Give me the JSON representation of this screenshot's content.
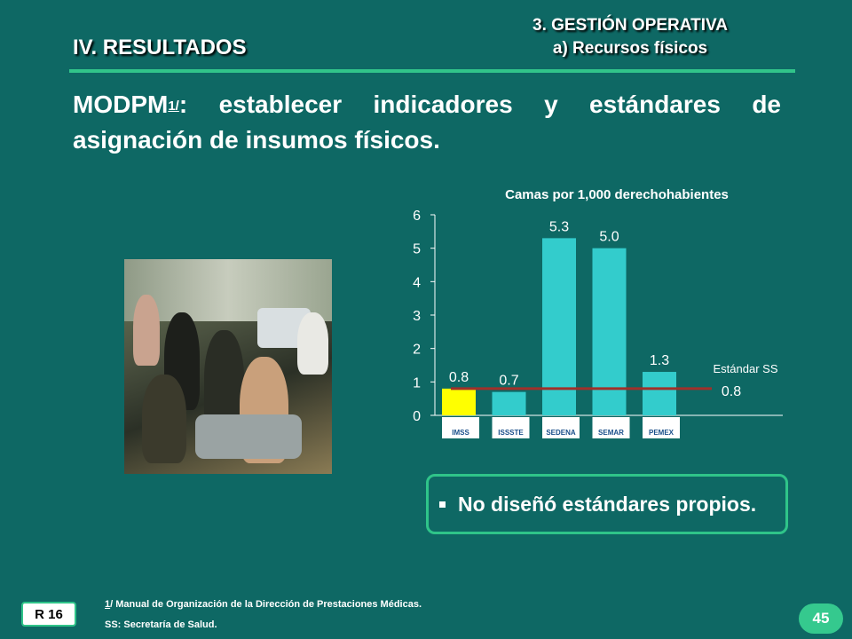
{
  "header": {
    "section": "IV. RESULTADOS",
    "topic": "3. GESTIÓN OPERATIVA",
    "subtopic": "a) Recursos físicos"
  },
  "title": {
    "prefix": "MODPM",
    "footnote_ref": "1/",
    "text": ": establecer indicadores y estándares de asignación de insumos físicos."
  },
  "chart_data": {
    "type": "bar",
    "title": "Camas por 1,000 derechohabientes",
    "categories": [
      "IMSS",
      "ISSSTE",
      "SEDENA",
      "SEMAR",
      "PEMEX"
    ],
    "values": [
      0.8,
      0.7,
      5.3,
      5.0,
      1.3
    ],
    "value_labels": [
      "0.8",
      "0.7",
      "5.3",
      "5.0",
      "1.3"
    ],
    "bar_colors": [
      "#ffff00",
      "#33cccc",
      "#33cccc",
      "#33cccc",
      "#33cccc"
    ],
    "ylim": [
      0,
      6
    ],
    "yticks": [
      "0",
      "1",
      "2",
      "3",
      "4",
      "5",
      "6"
    ],
    "reference_line": {
      "label": "Estándar SS",
      "value": 0.8,
      "value_label": "0.8",
      "color": "#a0302a"
    }
  },
  "callout": {
    "text": "No diseñó estándares propios."
  },
  "footer": {
    "ref_badge": "R 16",
    "footnote_num": "1",
    "footnote_rest": "/ Manual de Organización de la Dirección de Prestaciones Médicas.",
    "footnote_2": "SS: Secretaría de Salud.",
    "page_number": "45"
  }
}
